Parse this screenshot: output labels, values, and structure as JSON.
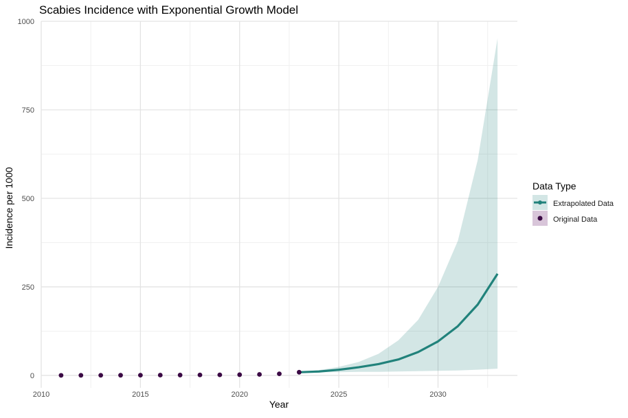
{
  "chart_data": {
    "type": "line",
    "title": "Scabies Incidence with Exponential Growth Model",
    "xlabel": "Year",
    "ylabel": "Incidence per 1000",
    "xlim": [
      2010,
      2034
    ],
    "ylim": [
      -35,
      1000
    ],
    "x_ticks": [
      2010,
      2015,
      2020,
      2025,
      2030
    ],
    "y_ticks": [
      0,
      250,
      500,
      750,
      1000
    ],
    "grid": true,
    "legend": {
      "title": "Data Type",
      "position": "right",
      "entries": [
        "Extrapolated Data",
        "Original Data"
      ]
    },
    "colors": {
      "extrapolated": "#21827b",
      "ribbon": "#21827b",
      "original": "#3b0a45",
      "grid_major": "#e3e3e3",
      "grid_minor": "#f0f0f0",
      "legend_original_bg": "#d8c5d9"
    },
    "series": [
      {
        "name": "Original Data",
        "kind": "points",
        "x": [
          2011,
          2012,
          2013,
          2014,
          2015,
          2016,
          2017,
          2018,
          2019,
          2020,
          2021,
          2022,
          2023
        ],
        "y": [
          0.2,
          0.3,
          0.4,
          0.5,
          0.6,
          0.8,
          1.0,
          1.3,
          1.6,
          2.0,
          2.8,
          4.5,
          9.0
        ]
      },
      {
        "name": "Extrapolated Data",
        "kind": "line",
        "x": [
          2023,
          2024,
          2025,
          2026,
          2027,
          2028,
          2029,
          2030,
          2031,
          2032,
          2033
        ],
        "y": [
          9,
          11,
          16,
          23,
          32,
          45,
          66,
          96,
          139,
          200,
          287
        ],
        "lower": [
          8,
          9,
          9,
          10,
          10,
          11,
          12,
          13,
          14,
          16,
          19
        ],
        "upper": [
          10,
          15,
          24,
          38,
          61,
          99,
          157,
          250,
          380,
          608,
          952
        ]
      }
    ]
  }
}
